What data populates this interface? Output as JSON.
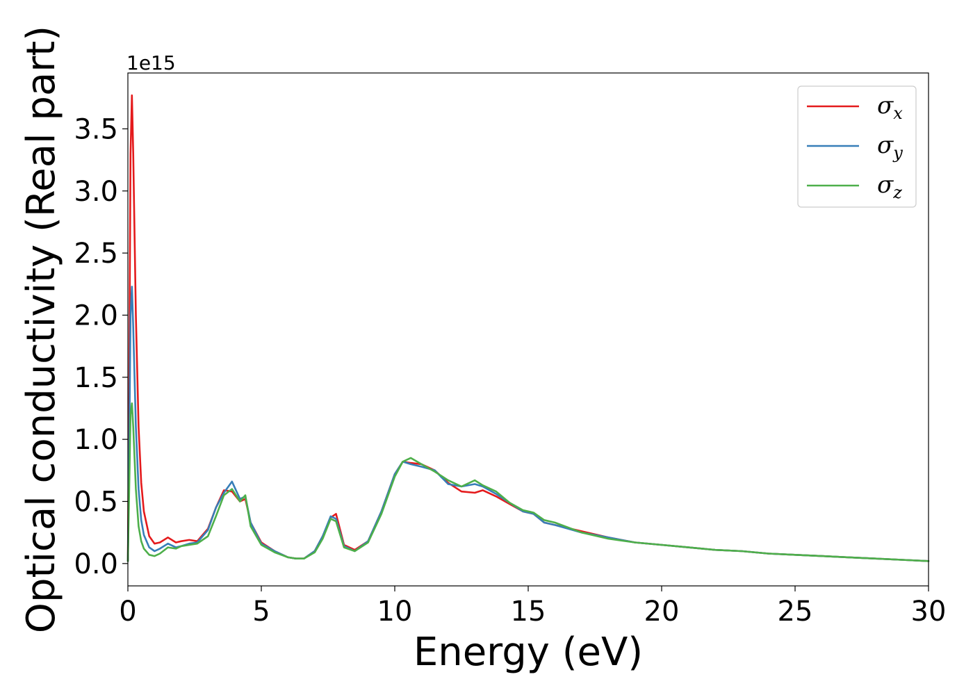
{
  "chart_data": {
    "type": "line",
    "title": "",
    "xlabel": "Energy (eV)",
    "ylabel": "Optical conductivity (Real part)",
    "y_offset_label": "1e15",
    "xlim": [
      0,
      30
    ],
    "ylim": [
      -0.18,
      3.95
    ],
    "xticks": [
      0,
      5,
      10,
      15,
      20,
      25,
      30
    ],
    "xtick_labels": [
      "0",
      "5",
      "10",
      "15",
      "20",
      "25",
      "30"
    ],
    "yticks": [
      0.0,
      0.5,
      1.0,
      1.5,
      2.0,
      2.5,
      3.0,
      3.5
    ],
    "ytick_labels": [
      "0.0",
      "0.5",
      "1.0",
      "1.5",
      "2.0",
      "2.5",
      "3.0",
      "3.5"
    ],
    "grid": false,
    "legend_position": "top-right",
    "series": [
      {
        "name": "σx",
        "symbol": "σ",
        "subscript": "x",
        "color": "#e41a1c",
        "x": [
          0,
          0.05,
          0.1,
          0.15,
          0.2,
          0.3,
          0.4,
          0.5,
          0.6,
          0.8,
          1.0,
          1.2,
          1.5,
          1.8,
          2.0,
          2.3,
          2.6,
          3.0,
          3.3,
          3.6,
          3.9,
          4.2,
          4.4,
          4.6,
          5.0,
          5.5,
          6.0,
          6.3,
          6.6,
          7.0,
          7.3,
          7.6,
          7.8,
          8.1,
          8.5,
          9.0,
          9.5,
          10.0,
          10.3,
          10.6,
          11.0,
          11.5,
          12.0,
          12.5,
          13.0,
          13.3,
          13.8,
          14.3,
          14.8,
          15.2,
          15.6,
          16.0,
          17.0,
          18.0,
          19.0,
          20.0,
          21.0,
          22.0,
          23.0,
          24.0,
          25.0,
          26.0,
          27.0,
          28.0,
          29.0,
          30.0
        ],
        "y": [
          0.02,
          1.4,
          3.3,
          3.77,
          3.3,
          2.0,
          1.1,
          0.65,
          0.42,
          0.22,
          0.16,
          0.17,
          0.21,
          0.17,
          0.18,
          0.19,
          0.18,
          0.28,
          0.45,
          0.59,
          0.58,
          0.5,
          0.52,
          0.33,
          0.17,
          0.1,
          0.05,
          0.04,
          0.04,
          0.1,
          0.22,
          0.37,
          0.4,
          0.15,
          0.11,
          0.18,
          0.42,
          0.72,
          0.82,
          0.81,
          0.8,
          0.75,
          0.65,
          0.58,
          0.57,
          0.59,
          0.54,
          0.48,
          0.42,
          0.4,
          0.33,
          0.31,
          0.26,
          0.21,
          0.17,
          0.15,
          0.13,
          0.11,
          0.1,
          0.08,
          0.07,
          0.06,
          0.05,
          0.04,
          0.03,
          0.02
        ]
      },
      {
        "name": "σy",
        "symbol": "σ",
        "subscript": "y",
        "color": "#377eb8",
        "x": [
          0,
          0.05,
          0.1,
          0.15,
          0.2,
          0.3,
          0.4,
          0.5,
          0.6,
          0.8,
          1.0,
          1.2,
          1.5,
          1.8,
          2.0,
          2.3,
          2.6,
          3.0,
          3.3,
          3.6,
          3.9,
          4.2,
          4.4,
          4.6,
          5.0,
          5.5,
          6.0,
          6.3,
          6.6,
          7.0,
          7.3,
          7.6,
          7.8,
          8.1,
          8.5,
          9.0,
          9.5,
          10.0,
          10.3,
          10.6,
          11.0,
          11.5,
          12.0,
          12.5,
          13.0,
          13.3,
          13.8,
          14.3,
          14.8,
          15.2,
          15.6,
          16.0,
          17.0,
          18.0,
          19.0,
          20.0,
          21.0,
          22.0,
          23.0,
          24.0,
          25.0,
          26.0,
          27.0,
          28.0,
          29.0,
          30.0
        ],
        "y": [
          0.02,
          0.9,
          2.0,
          2.23,
          1.9,
          1.1,
          0.6,
          0.35,
          0.23,
          0.13,
          0.1,
          0.12,
          0.16,
          0.13,
          0.14,
          0.16,
          0.17,
          0.27,
          0.45,
          0.57,
          0.66,
          0.52,
          0.54,
          0.33,
          0.16,
          0.1,
          0.05,
          0.04,
          0.04,
          0.1,
          0.22,
          0.38,
          0.36,
          0.14,
          0.1,
          0.18,
          0.42,
          0.72,
          0.82,
          0.8,
          0.78,
          0.75,
          0.64,
          0.62,
          0.64,
          0.62,
          0.56,
          0.49,
          0.42,
          0.4,
          0.33,
          0.31,
          0.25,
          0.21,
          0.17,
          0.15,
          0.13,
          0.11,
          0.1,
          0.08,
          0.07,
          0.06,
          0.05,
          0.04,
          0.03,
          0.02
        ]
      },
      {
        "name": "σz",
        "symbol": "σ",
        "subscript": "z",
        "color": "#4daf4a",
        "x": [
          0,
          0.05,
          0.1,
          0.15,
          0.2,
          0.3,
          0.4,
          0.5,
          0.6,
          0.8,
          1.0,
          1.2,
          1.5,
          1.8,
          2.0,
          2.3,
          2.6,
          3.0,
          3.3,
          3.6,
          3.9,
          4.2,
          4.4,
          4.6,
          5.0,
          5.5,
          6.0,
          6.3,
          6.6,
          7.0,
          7.3,
          7.6,
          7.8,
          8.1,
          8.5,
          9.0,
          9.5,
          10.0,
          10.3,
          10.6,
          11.0,
          11.5,
          12.0,
          12.5,
          13.0,
          13.3,
          13.8,
          14.3,
          14.8,
          15.2,
          15.6,
          16.0,
          17.0,
          18.0,
          19.0,
          20.0,
          21.0,
          22.0,
          23.0,
          24.0,
          25.0,
          26.0,
          27.0,
          28.0,
          29.0,
          30.0
        ],
        "y": [
          0.02,
          0.6,
          1.2,
          1.29,
          1.1,
          0.6,
          0.3,
          0.18,
          0.12,
          0.07,
          0.06,
          0.08,
          0.13,
          0.12,
          0.14,
          0.15,
          0.16,
          0.22,
          0.38,
          0.55,
          0.6,
          0.5,
          0.55,
          0.3,
          0.15,
          0.09,
          0.05,
          0.04,
          0.04,
          0.09,
          0.2,
          0.36,
          0.34,
          0.13,
          0.1,
          0.17,
          0.4,
          0.7,
          0.82,
          0.85,
          0.8,
          0.74,
          0.67,
          0.62,
          0.67,
          0.63,
          0.58,
          0.49,
          0.43,
          0.41,
          0.35,
          0.33,
          0.25,
          0.2,
          0.17,
          0.15,
          0.13,
          0.11,
          0.1,
          0.08,
          0.07,
          0.06,
          0.05,
          0.04,
          0.03,
          0.02
        ]
      }
    ]
  }
}
